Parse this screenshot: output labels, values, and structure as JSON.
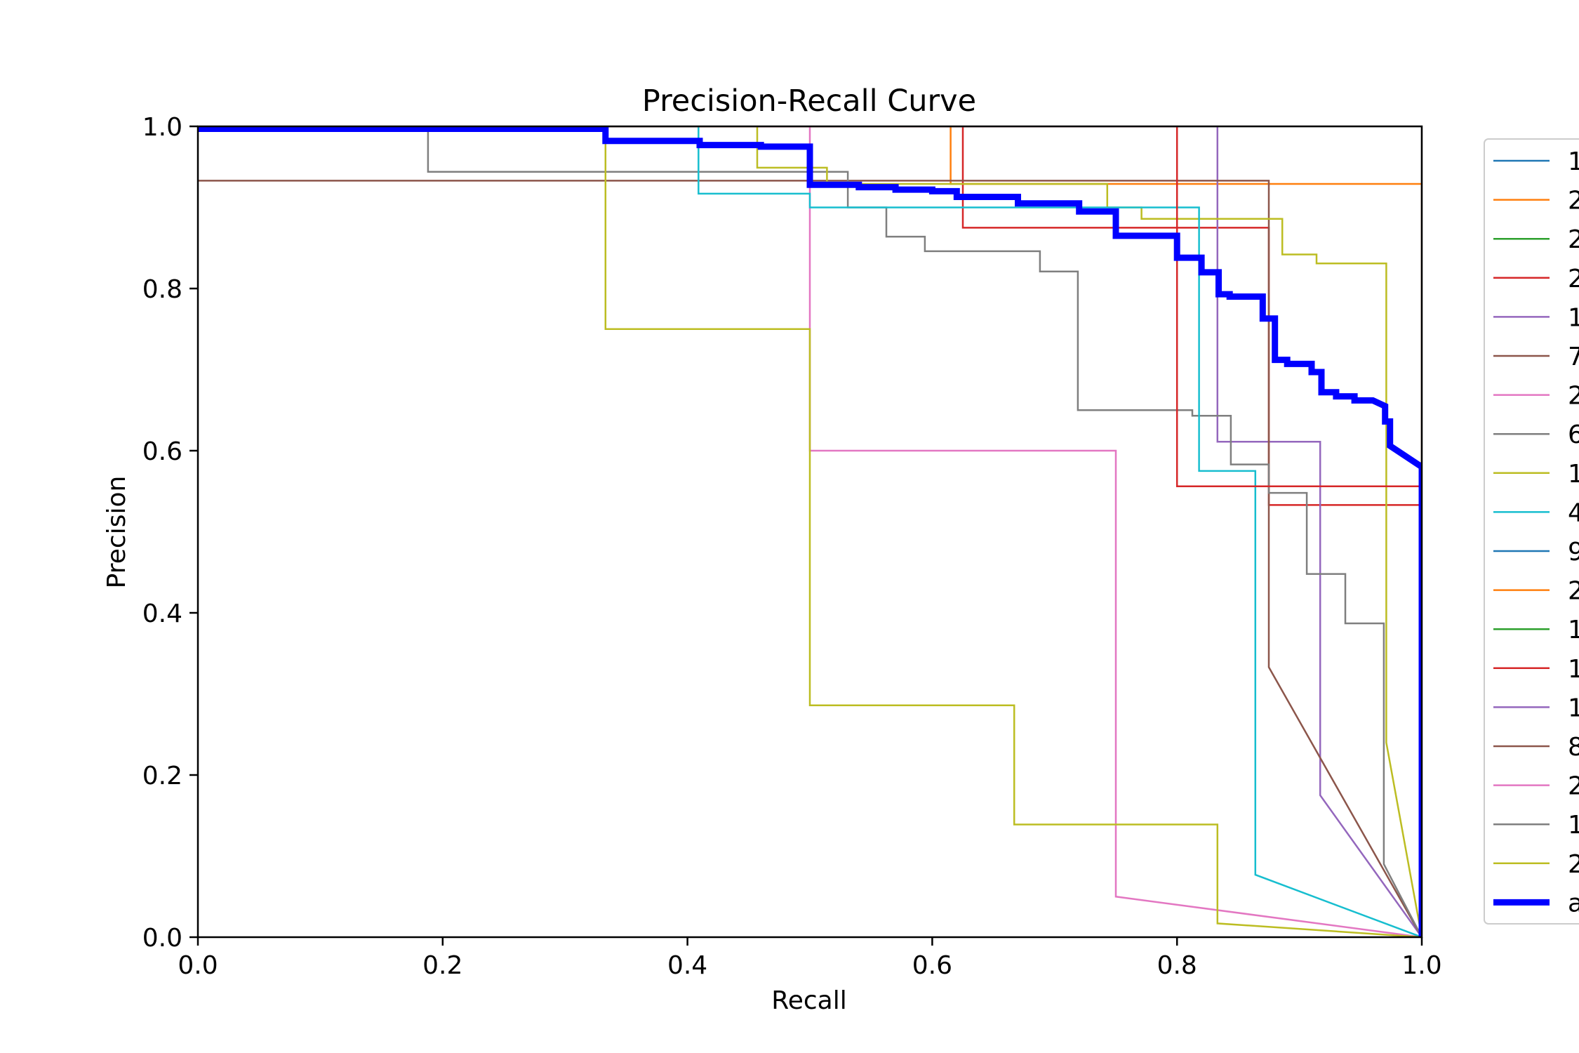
{
  "chart_data": {
    "type": "line",
    "title": "Precision-Recall Curve",
    "xlabel": "Recall",
    "ylabel": "Precision",
    "xlim": [
      0,
      1
    ],
    "ylim": [
      0,
      1
    ],
    "xticks": [
      "0.0",
      "0.2",
      "0.4",
      "0.6",
      "0.8",
      "1.0"
    ],
    "yticks": [
      "0.0",
      "0.2",
      "0.4",
      "0.6",
      "0.8",
      "1.0"
    ],
    "grid": false,
    "legend_position": "right, clipped at image edge",
    "series": [
      {
        "name": "1",
        "color": "#1f77b4",
        "width": 2.5,
        "points": [
          [
            0,
            1
          ],
          [
            0.0,
            1
          ]
        ]
      },
      {
        "name": "2",
        "color": "#ff7f0e",
        "width": 2.5,
        "points": [
          [
            0,
            1
          ],
          [
            0.615,
            1
          ],
          [
            0.615,
            0.929
          ],
          [
            1,
            0.929
          ],
          [
            1,
            0
          ]
        ]
      },
      {
        "name": "2",
        "color": "#2ca02c",
        "width": 2.5,
        "points": [
          [
            0,
            1
          ],
          [
            0.0,
            1
          ]
        ]
      },
      {
        "name": "2",
        "color": "#d62728",
        "width": 2.5,
        "points": [
          [
            0,
            1
          ],
          [
            0.625,
            1
          ],
          [
            0.625,
            0.875
          ],
          [
            0.875,
            0.875
          ],
          [
            0.875,
            0.533
          ],
          [
            1,
            0.533
          ],
          [
            1,
            0
          ]
        ]
      },
      {
        "name": "1",
        "color": "#9467bd",
        "width": 2.5,
        "points": [
          [
            0,
            1
          ],
          [
            0.833,
            1
          ],
          [
            0.833,
            0.611
          ],
          [
            0.917,
            0.611
          ],
          [
            0.917,
            0.175
          ],
          [
            1,
            0
          ]
        ]
      },
      {
        "name": "7",
        "color": "#8c564b",
        "width": 2.5,
        "points": [
          [
            0,
            0.933
          ],
          [
            0.875,
            0.933
          ],
          [
            0.875,
            0.333
          ],
          [
            1,
            0
          ]
        ]
      },
      {
        "name": "2",
        "color": "#e377c2",
        "width": 2.5,
        "points": [
          [
            0,
            1
          ],
          [
            0.5,
            1
          ],
          [
            0.5,
            0.6
          ],
          [
            0.75,
            0.6
          ],
          [
            0.75,
            0.05
          ],
          [
            1,
            0
          ]
        ]
      },
      {
        "name": "6",
        "color": "#7f7f7f",
        "width": 2.5,
        "points": [
          [
            0,
            1
          ],
          [
            0.188,
            1
          ],
          [
            0.188,
            0.944
          ],
          [
            0.531,
            0.944
          ],
          [
            0.531,
            0.9
          ],
          [
            0.5625,
            0.9
          ],
          [
            0.5625,
            0.864
          ],
          [
            0.594,
            0.864
          ],
          [
            0.594,
            0.846
          ],
          [
            0.688,
            0.846
          ],
          [
            0.688,
            0.821
          ],
          [
            0.719,
            0.821
          ],
          [
            0.719,
            0.65
          ],
          [
            0.8125,
            0.65
          ],
          [
            0.8125,
            0.643
          ],
          [
            0.844,
            0.643
          ],
          [
            0.844,
            0.583
          ],
          [
            0.875,
            0.583
          ],
          [
            0.875,
            0.548
          ],
          [
            0.906,
            0.548
          ],
          [
            0.906,
            0.448
          ],
          [
            0.9375,
            0.448
          ],
          [
            0.9375,
            0.387
          ],
          [
            0.969,
            0.387
          ],
          [
            0.969,
            0.09
          ],
          [
            1,
            0
          ]
        ]
      },
      {
        "name": "1",
        "color": "#bcbd22",
        "width": 2.5,
        "points": [
          [
            0,
            1
          ],
          [
            0.457,
            1
          ],
          [
            0.457,
            0.949
          ],
          [
            0.514,
            0.949
          ],
          [
            0.514,
            0.929
          ],
          [
            0.743,
            0.929
          ],
          [
            0.743,
            0.9
          ],
          [
            0.771,
            0.9
          ],
          [
            0.771,
            0.886
          ],
          [
            0.886,
            0.886
          ],
          [
            0.886,
            0.842
          ],
          [
            0.914,
            0.842
          ],
          [
            0.914,
            0.831
          ],
          [
            0.971,
            0.831
          ],
          [
            0.971,
            0.24
          ],
          [
            1,
            0
          ]
        ]
      },
      {
        "name": "4",
        "color": "#17becf",
        "width": 2.5,
        "points": [
          [
            0,
            1
          ],
          [
            0.409,
            1
          ],
          [
            0.409,
            0.917
          ],
          [
            0.5,
            0.917
          ],
          [
            0.5,
            0.9
          ],
          [
            0.818,
            0.9
          ],
          [
            0.818,
            0.575
          ],
          [
            0.864,
            0.575
          ],
          [
            0.864,
            0.077
          ],
          [
            1,
            0
          ]
        ]
      },
      {
        "name": "9",
        "color": "#1f77b4",
        "width": 2.5,
        "points": [
          [
            0,
            1
          ],
          [
            0.0,
            1
          ]
        ]
      },
      {
        "name": "2",
        "color": "#ff7f0e",
        "width": 2.5,
        "points": [
          [
            0,
            1
          ],
          [
            0.0,
            1
          ]
        ]
      },
      {
        "name": "1",
        "color": "#2ca02c",
        "width": 2.5,
        "points": [
          [
            0,
            1
          ],
          [
            0.0,
            1
          ]
        ]
      },
      {
        "name": "1",
        "color": "#d62728",
        "width": 2.5,
        "points": [
          [
            0,
            1
          ],
          [
            0.8,
            1
          ],
          [
            0.8,
            0.556
          ],
          [
            1,
            0.556
          ],
          [
            1,
            0
          ]
        ]
      },
      {
        "name": "1",
        "color": "#9467bd",
        "width": 2.5,
        "points": [
          [
            0,
            1
          ],
          [
            0.0,
            1
          ]
        ]
      },
      {
        "name": "8",
        "color": "#8c564b",
        "width": 2.5,
        "points": [
          [
            0,
            1
          ],
          [
            0.0,
            1
          ]
        ]
      },
      {
        "name": "2",
        "color": "#e377c2",
        "width": 2.5,
        "points": [
          [
            0,
            1
          ],
          [
            0.0,
            1
          ]
        ]
      },
      {
        "name": "1",
        "color": "#7f7f7f",
        "width": 2.5,
        "points": [
          [
            0,
            1
          ],
          [
            1,
            1
          ],
          [
            1,
            0
          ]
        ]
      },
      {
        "name": "2",
        "color": "#bcbd22",
        "width": 2.5,
        "points": [
          [
            0,
            1
          ],
          [
            0.333,
            1
          ],
          [
            0.333,
            0.75
          ],
          [
            0.5,
            0.75
          ],
          [
            0.5,
            0.286
          ],
          [
            0.667,
            0.286
          ],
          [
            0.667,
            0.139
          ],
          [
            0.833,
            0.139
          ],
          [
            0.833,
            0.017
          ],
          [
            1,
            0
          ]
        ]
      },
      {
        "name": "a",
        "color": "#0000ff",
        "width": 9,
        "points": [
          [
            0,
            0.997
          ],
          [
            0.333,
            0.997
          ],
          [
            0.333,
            0.982
          ],
          [
            0.41,
            0.982
          ],
          [
            0.41,
            0.977
          ],
          [
            0.46,
            0.977
          ],
          [
            0.46,
            0.975
          ],
          [
            0.5,
            0.975
          ],
          [
            0.5,
            0.928
          ],
          [
            0.54,
            0.928
          ],
          [
            0.54,
            0.925
          ],
          [
            0.57,
            0.925
          ],
          [
            0.57,
            0.922
          ],
          [
            0.6,
            0.922
          ],
          [
            0.6,
            0.92
          ],
          [
            0.62,
            0.92
          ],
          [
            0.62,
            0.913
          ],
          [
            0.67,
            0.913
          ],
          [
            0.67,
            0.905
          ],
          [
            0.72,
            0.905
          ],
          [
            0.72,
            0.895
          ],
          [
            0.75,
            0.895
          ],
          [
            0.75,
            0.865
          ],
          [
            0.8,
            0.865
          ],
          [
            0.8,
            0.838
          ],
          [
            0.82,
            0.838
          ],
          [
            0.82,
            0.82
          ],
          [
            0.834,
            0.82
          ],
          [
            0.834,
            0.793
          ],
          [
            0.843,
            0.793
          ],
          [
            0.843,
            0.79
          ],
          [
            0.87,
            0.79
          ],
          [
            0.87,
            0.763
          ],
          [
            0.88,
            0.763
          ],
          [
            0.88,
            0.712
          ],
          [
            0.89,
            0.712
          ],
          [
            0.89,
            0.707
          ],
          [
            0.91,
            0.707
          ],
          [
            0.91,
            0.697
          ],
          [
            0.918,
            0.697
          ],
          [
            0.918,
            0.672
          ],
          [
            0.93,
            0.672
          ],
          [
            0.93,
            0.667
          ],
          [
            0.945,
            0.667
          ],
          [
            0.945,
            0.662
          ],
          [
            0.96,
            0.662
          ],
          [
            0.97,
            0.655
          ],
          [
            0.97,
            0.636
          ],
          [
            0.974,
            0.636
          ],
          [
            0.974,
            0.606
          ],
          [
            1,
            0.58
          ],
          [
            1,
            0
          ]
        ]
      }
    ]
  }
}
